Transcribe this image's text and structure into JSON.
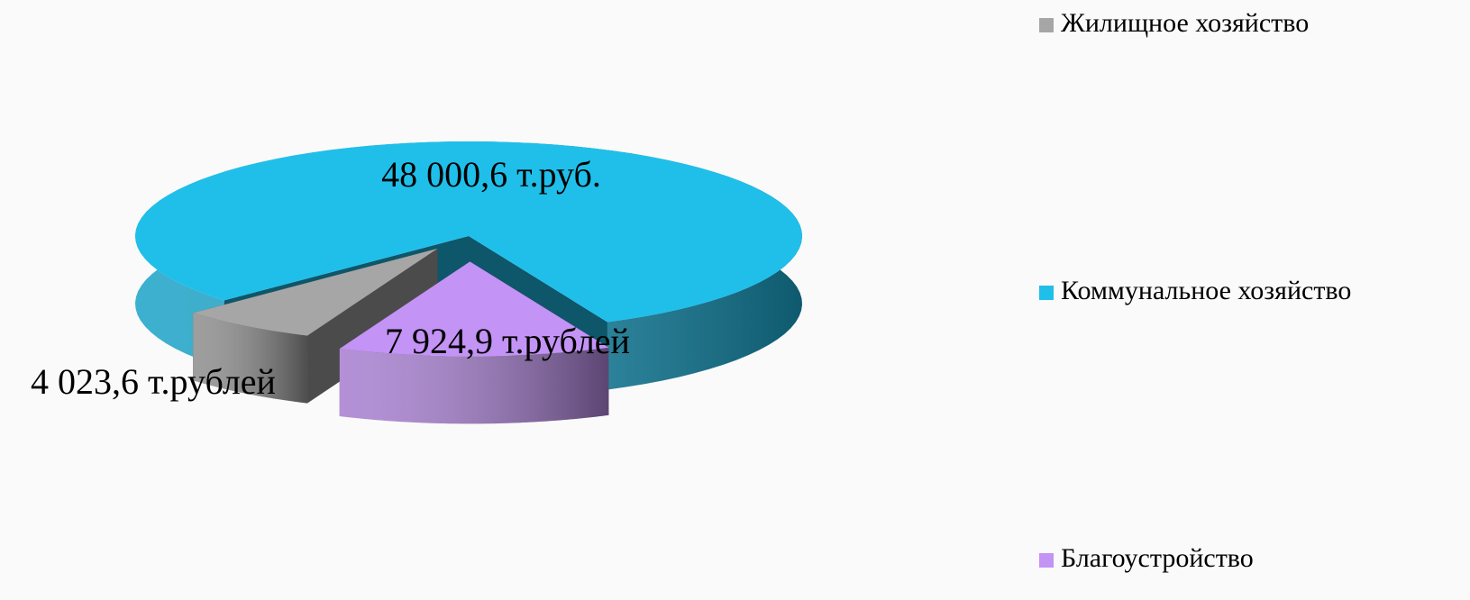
{
  "chart_data": {
    "type": "pie3d",
    "categories": [
      "Жилищное хозяйство",
      "Коммунальное хозяйство",
      "Благоустройство"
    ],
    "values": [
      4023.6,
      48000.6,
      7924.9
    ],
    "value_labels": [
      "4 023,6 т.рублей",
      "48 000,6 т.руб.",
      "7 924,9 т.рублей"
    ],
    "colors": [
      "#a6a6a6",
      "#1fbfea",
      "#c393f5"
    ]
  }
}
